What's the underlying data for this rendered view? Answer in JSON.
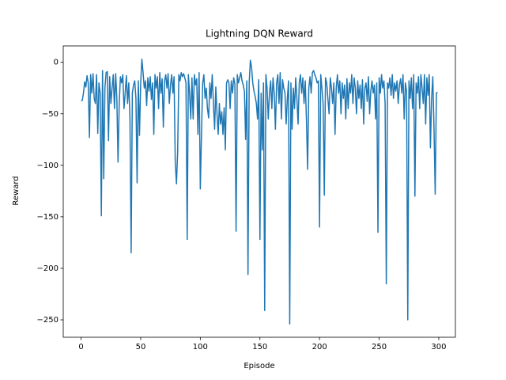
{
  "chart_data": {
    "type": "line",
    "title": "Lightning DQN Reward",
    "xlabel": "Episode",
    "ylabel": "Reward",
    "x": [
      0,
      1,
      2,
      3,
      4,
      5,
      6,
      7,
      8,
      9,
      10,
      11,
      12,
      13,
      14,
      15,
      16,
      17,
      18,
      19,
      20,
      21,
      22,
      23,
      24,
      25,
      26,
      27,
      28,
      29,
      30,
      31,
      32,
      33,
      34,
      35,
      36,
      37,
      38,
      39,
      40,
      41,
      42,
      43,
      44,
      45,
      46,
      47,
      48,
      49,
      50,
      51,
      52,
      53,
      54,
      55,
      56,
      57,
      58,
      59,
      60,
      61,
      62,
      63,
      64,
      65,
      66,
      67,
      68,
      69,
      70,
      71,
      72,
      73,
      74,
      75,
      76,
      77,
      78,
      79,
      80,
      81,
      82,
      83,
      84,
      85,
      86,
      87,
      88,
      89,
      90,
      91,
      92,
      93,
      94,
      95,
      96,
      97,
      98,
      99,
      100,
      101,
      102,
      103,
      104,
      105,
      106,
      107,
      108,
      109,
      110,
      111,
      112,
      113,
      114,
      115,
      116,
      117,
      118,
      119,
      120,
      121,
      122,
      123,
      124,
      125,
      126,
      127,
      128,
      129,
      130,
      131,
      132,
      133,
      134,
      135,
      136,
      137,
      138,
      139,
      140,
      141,
      142,
      143,
      144,
      145,
      146,
      147,
      148,
      149,
      150,
      151,
      152,
      153,
      154,
      155,
      156,
      157,
      158,
      159,
      160,
      161,
      162,
      163,
      164,
      165,
      166,
      167,
      168,
      169,
      170,
      171,
      172,
      173,
      174,
      175,
      176,
      177,
      178,
      179,
      180,
      181,
      182,
      183,
      184,
      185,
      186,
      187,
      188,
      189,
      190,
      191,
      192,
      193,
      194,
      195,
      196,
      197,
      198,
      199,
      200,
      201,
      202,
      203,
      204,
      205,
      206,
      207,
      208,
      209,
      210,
      211,
      212,
      213,
      214,
      215,
      216,
      217,
      218,
      219,
      220,
      221,
      222,
      223,
      224,
      225,
      226,
      227,
      228,
      229,
      230,
      231,
      232,
      233,
      234,
      235,
      236,
      237,
      238,
      239,
      240,
      241,
      242,
      243,
      244,
      245,
      246,
      247,
      248,
      249,
      250,
      251,
      252,
      253,
      254,
      255,
      256,
      257,
      258,
      259,
      260,
      261,
      262,
      263,
      264,
      265,
      266,
      267,
      268,
      269,
      270,
      271,
      272,
      273,
      274,
      275,
      276,
      277,
      278,
      279,
      280,
      281,
      282,
      283,
      284,
      285,
      286,
      287,
      288,
      289,
      290,
      291,
      292,
      293,
      294,
      295,
      296,
      297,
      298,
      299
    ],
    "series": [
      {
        "color": "#1f77b4",
        "values": [
          -37,
          -37,
          -30,
          -19,
          -24,
          -13,
          -20,
          -73,
          -12,
          -30,
          -11,
          -35,
          -40,
          -12,
          -69,
          -20,
          -30,
          -149,
          -8,
          -113,
          -25,
          -10,
          -9,
          -76,
          -14,
          -40,
          -25,
          -12,
          -45,
          -11,
          -35,
          -97,
          -40,
          -14,
          -20,
          -12,
          -45,
          -30,
          -13,
          -40,
          -20,
          -55,
          -185,
          -30,
          -22,
          -18,
          -35,
          -117,
          -18,
          -71,
          -20,
          3,
          -10,
          -25,
          -18,
          -42,
          -15,
          -28,
          -14,
          -36,
          -20,
          -70,
          -12,
          -25,
          -14,
          -45,
          -10,
          -30,
          -16,
          -63,
          -18,
          -12,
          -25,
          -11,
          -40,
          -22,
          -12,
          -30,
          -14,
          -97,
          -118,
          -87,
          -12,
          -18,
          -10,
          -14,
          -11,
          -15,
          -20,
          -172,
          -12,
          -30,
          -55,
          -15,
          -55,
          -12,
          -22,
          -16,
          -70,
          -10,
          -123,
          -70,
          -20,
          -12,
          -35,
          -25,
          -45,
          -54,
          -20,
          -35,
          -12,
          -40,
          -65,
          -24,
          -50,
          -70,
          -40,
          -60,
          -48,
          -70,
          -44,
          -85,
          -20,
          -17,
          -20,
          -45,
          -18,
          -30,
          -15,
          -21,
          -164,
          -12,
          -20,
          -15,
          -10,
          -18,
          -22,
          -28,
          -75,
          -18,
          -206,
          -20,
          2,
          -5,
          -20,
          -28,
          -33,
          -40,
          -55,
          -17,
          -172,
          -30,
          -85,
          -20,
          -241,
          -12,
          -25,
          -55,
          -30,
          -18,
          -45,
          -15,
          -30,
          -65,
          -20,
          -12,
          -40,
          -10,
          -55,
          -17,
          -25,
          -30,
          -60,
          -35,
          -18,
          -254,
          -20,
          -65,
          -25,
          -45,
          -15,
          -35,
          -60,
          -20,
          -12,
          -30,
          -15,
          -40,
          -18,
          -55,
          -104,
          -25,
          -14,
          -30,
          -10,
          -8,
          -12,
          -15,
          -20,
          -18,
          -160,
          -12,
          -25,
          -40,
          -129,
          -15,
          -20,
          -35,
          -50,
          -15,
          -25,
          -40,
          -20,
          -70,
          -25,
          -12,
          -30,
          -18,
          -50,
          -20,
          -35,
          -22,
          -55,
          -16,
          -45,
          -20,
          -30,
          -12,
          -40,
          -15,
          -25,
          -50,
          -18,
          -35,
          -22,
          -45,
          -17,
          -60,
          -25,
          -20,
          -38,
          -14,
          -50,
          -28,
          -18,
          -30,
          -22,
          -55,
          -20,
          -165,
          -15,
          -30,
          -12,
          -25,
          -18,
          -40,
          -215,
          -20,
          -25,
          -15,
          -32,
          -12,
          -35,
          -20,
          -28,
          -18,
          -40,
          -22,
          -16,
          -30,
          -12,
          -55,
          -20,
          -28,
          -250,
          -18,
          -35,
          -15,
          -45,
          -12,
          -130,
          -20,
          -30,
          -14,
          -45,
          -12,
          -25,
          -40,
          -12,
          -60,
          -15,
          -32,
          -12,
          -83,
          -35,
          -14,
          -64,
          -128,
          -30,
          -29
        ]
      }
    ],
    "xlim": [
      -14.95,
      313.95
    ],
    "xticks": [
      0,
      50,
      100,
      150,
      200,
      250,
      300
    ],
    "ylim": [
      -266.9,
      15.9
    ],
    "yticks": [
      {
        "value": -250,
        "label": "−250"
      },
      {
        "value": -200,
        "label": "−200"
      },
      {
        "value": -150,
        "label": "−150"
      },
      {
        "value": -100,
        "label": "−100"
      },
      {
        "value": -50,
        "label": "−50"
      },
      0
    ],
    "grid": false
  }
}
